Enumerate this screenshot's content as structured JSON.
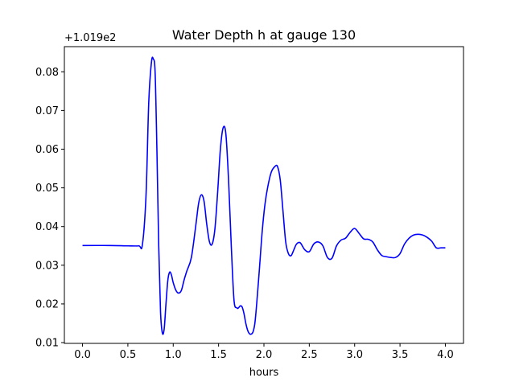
{
  "chart_data": {
    "type": "line",
    "title": "Water Depth h at gauge 130",
    "xlabel": "hours",
    "ylabel": "",
    "offset_label": "+1.019e2",
    "xlim": [
      -0.2,
      4.2
    ],
    "ylim": [
      0.0098,
      0.0865
    ],
    "xticks": [
      0.0,
      0.5,
      1.0,
      1.5,
      2.0,
      2.5,
      3.0,
      3.5,
      4.0
    ],
    "xtick_labels": [
      "0.0",
      "0.5",
      "1.0",
      "1.5",
      "2.0",
      "2.5",
      "3.0",
      "3.5",
      "4.0"
    ],
    "yticks": [
      0.01,
      0.02,
      0.03,
      0.04,
      0.05,
      0.06,
      0.07,
      0.08
    ],
    "ytick_labels": [
      "0.01",
      "0.02",
      "0.03",
      "0.04",
      "0.05",
      "0.06",
      "0.07",
      "0.08"
    ],
    "grid": false,
    "series": [
      {
        "color": "#0000ff",
        "x": [
          0.0,
          0.3,
          0.5,
          0.62,
          0.66,
          0.7,
          0.73,
          0.76,
          0.78,
          0.8,
          0.82,
          0.84,
          0.86,
          0.88,
          0.9,
          0.92,
          0.94,
          0.96,
          0.98,
          1.0,
          1.03,
          1.06,
          1.09,
          1.12,
          1.15,
          1.2,
          1.25,
          1.28,
          1.31,
          1.34,
          1.37,
          1.4,
          1.43,
          1.46,
          1.49,
          1.52,
          1.55,
          1.58,
          1.61,
          1.64,
          1.67,
          1.7,
          1.72,
          1.74,
          1.76,
          1.78,
          1.8,
          1.82,
          1.84,
          1.86,
          1.88,
          1.9,
          1.92,
          1.95,
          1.98,
          2.01,
          2.04,
          2.08,
          2.12,
          2.15,
          2.18,
          2.21,
          2.24,
          2.27,
          2.3,
          2.33,
          2.36,
          2.4,
          2.45,
          2.5,
          2.55,
          2.6,
          2.65,
          2.7,
          2.75,
          2.8,
          2.85,
          2.9,
          2.95,
          3.0,
          3.05,
          3.1,
          3.15,
          3.2,
          3.25,
          3.3,
          3.35,
          3.4,
          3.45,
          3.5,
          3.55,
          3.6,
          3.65,
          3.7,
          3.75,
          3.8,
          3.85,
          3.9,
          3.95,
          4.0
        ],
        "y": [
          0.0351,
          0.0351,
          0.035,
          0.035,
          0.0353,
          0.048,
          0.072,
          0.0825,
          0.0833,
          0.08,
          0.06,
          0.035,
          0.018,
          0.0125,
          0.0135,
          0.02,
          0.026,
          0.0282,
          0.0275,
          0.0255,
          0.0235,
          0.0228,
          0.0235,
          0.0262,
          0.0285,
          0.032,
          0.0405,
          0.046,
          0.0482,
          0.0465,
          0.0405,
          0.036,
          0.0355,
          0.0395,
          0.049,
          0.06,
          0.0655,
          0.064,
          0.052,
          0.035,
          0.021,
          0.019,
          0.019,
          0.0195,
          0.0192,
          0.0175,
          0.015,
          0.0132,
          0.0123,
          0.0122,
          0.0128,
          0.015,
          0.02,
          0.029,
          0.0385,
          0.0455,
          0.05,
          0.054,
          0.0555,
          0.0555,
          0.052,
          0.044,
          0.036,
          0.033,
          0.0325,
          0.034,
          0.0355,
          0.0358,
          0.034,
          0.0335,
          0.0355,
          0.036,
          0.035,
          0.032,
          0.0318,
          0.035,
          0.0365,
          0.037,
          0.0385,
          0.0395,
          0.0382,
          0.0368,
          0.0367,
          0.036,
          0.034,
          0.0325,
          0.0322,
          0.032,
          0.032,
          0.033,
          0.0355,
          0.037,
          0.0378,
          0.038,
          0.0378,
          0.0372,
          0.0362,
          0.0345,
          0.0345,
          0.0345
        ]
      }
    ]
  }
}
